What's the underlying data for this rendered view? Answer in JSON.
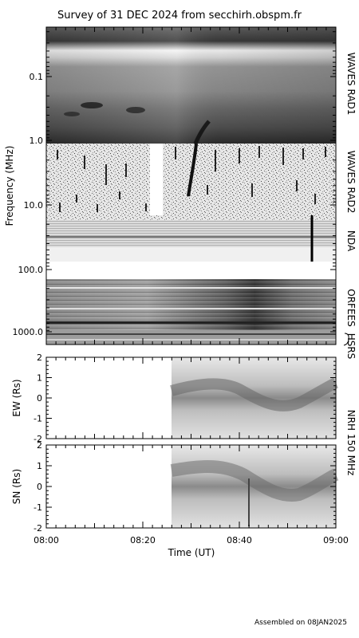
{
  "chart_data": {
    "type": "heatmap",
    "title": "Survey of 31 DEC 2024 from secchirh.obspm.fr",
    "footer": "Assembled on 08JAN2025",
    "spectrum": {
      "ylabel": "Frequency (MHz)",
      "y_scale": "log",
      "y_ticks": [
        "0.1",
        "1.0",
        "10.0",
        "100.0",
        "1000.0"
      ],
      "instruments": [
        "WAVES RAD1",
        "WAVES RAD2",
        "NDA",
        "ORFEES",
        "HSRS"
      ]
    },
    "imaging": {
      "label": "NRH 150 MHz",
      "panels": [
        {
          "ylabel": "EW (Rs)",
          "y_ticks": [
            "2",
            "1",
            "0",
            "-1",
            "-2"
          ],
          "ylim": [
            -2,
            2
          ]
        },
        {
          "ylabel": "SN (Rs)",
          "y_ticks": [
            "2",
            "1",
            "0",
            "-1",
            "-2"
          ],
          "ylim": [
            -2,
            2
          ]
        }
      ]
    },
    "time_axis": {
      "xlabel": "Time (UT)",
      "x_ticks": [
        "08:00",
        "08:20",
        "08:40",
        "09:00"
      ],
      "xlim": [
        "08:00",
        "09:00"
      ]
    }
  },
  "colors": {
    "axis": "#000000",
    "background": "#ffffff",
    "colormap": "greyscale"
  }
}
